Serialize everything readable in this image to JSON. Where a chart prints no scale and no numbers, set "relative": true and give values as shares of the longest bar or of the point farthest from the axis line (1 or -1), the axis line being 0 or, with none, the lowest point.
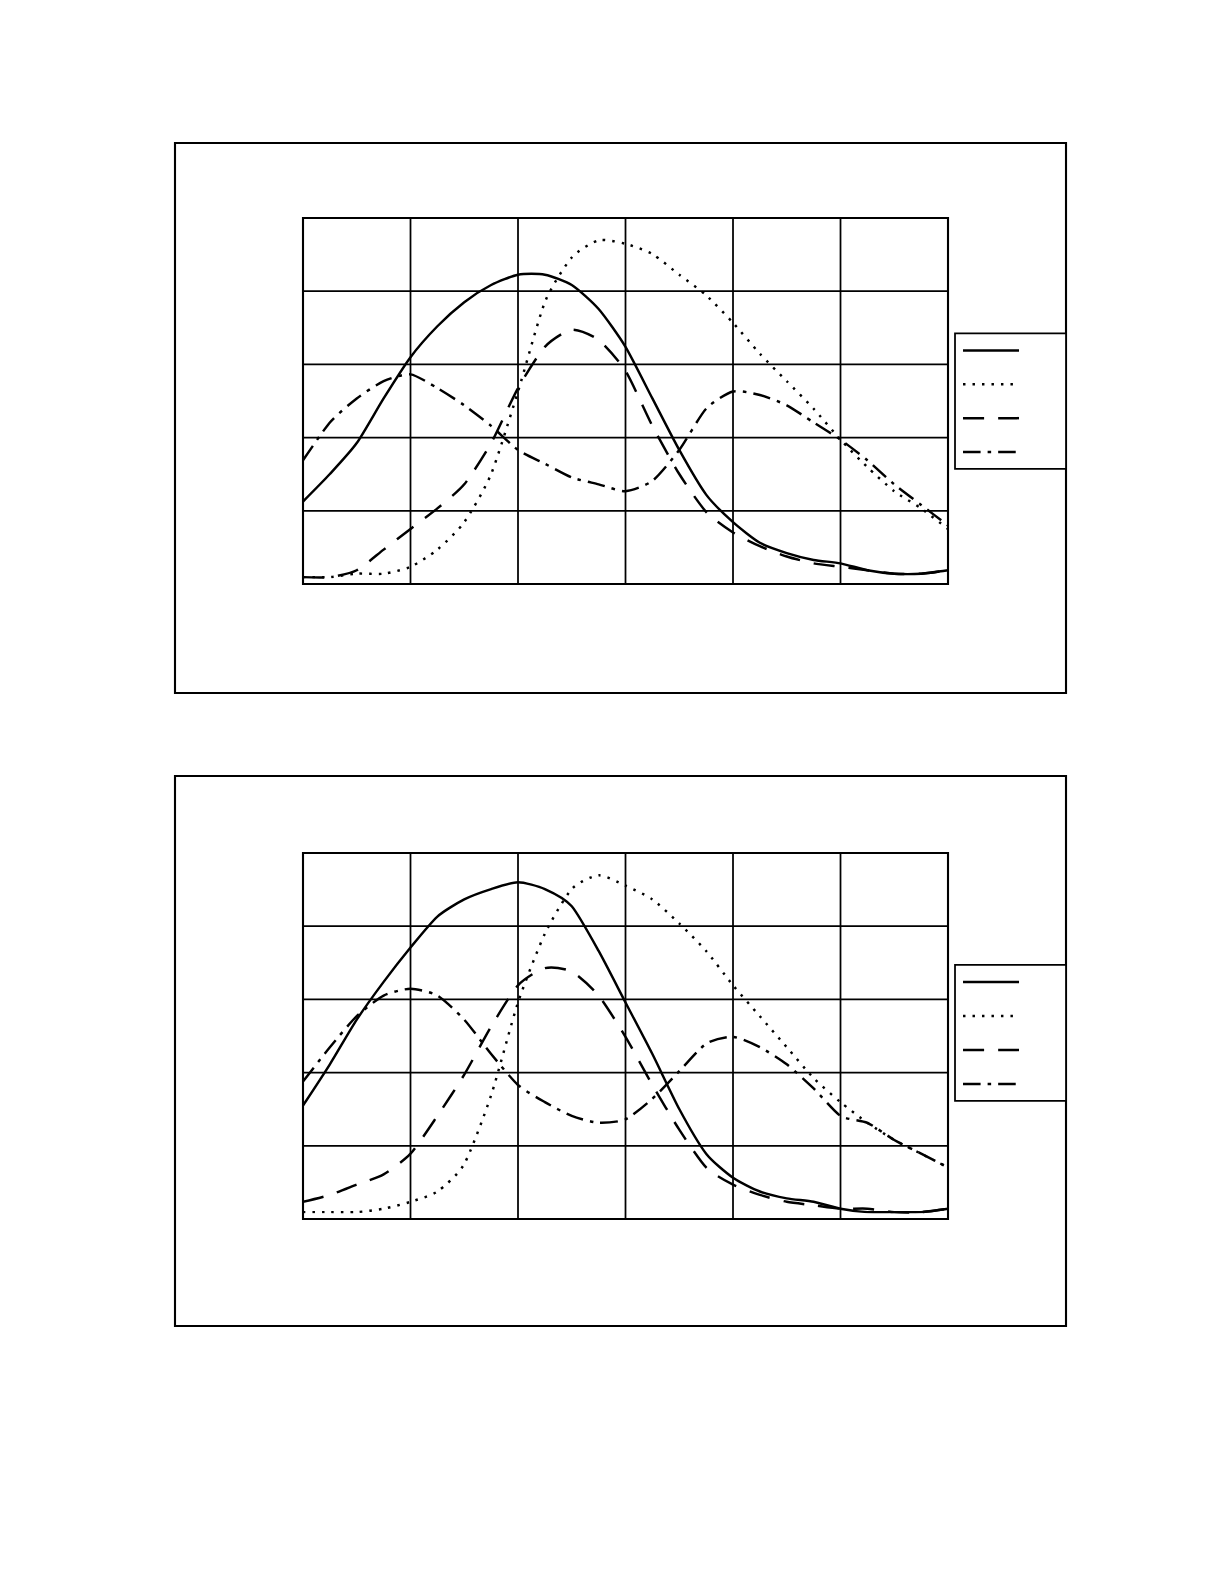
{
  "chart_data": [
    {
      "type": "line",
      "relative": true,
      "grid": true,
      "categories": [
        null,
        null,
        null,
        null,
        null,
        null,
        null,
        null,
        null,
        null,
        null,
        null,
        null,
        null,
        null,
        null,
        null,
        null,
        null,
        null,
        null,
        null,
        null,
        null,
        null
      ],
      "series": [
        {
          "color": "#000000",
          "line_style": "solid",
          "values": [
            0.24,
            0.32,
            0.41,
            0.54,
            0.66,
            0.75,
            0.82,
            0.87,
            0.9,
            0.9,
            0.87,
            0.8,
            0.69,
            0.54,
            0.39,
            0.26,
            0.18,
            0.12,
            0.09,
            0.07,
            0.06,
            0.04,
            0.03,
            0.03,
            0.04
          ]
        },
        {
          "color": "#000000",
          "line_style": "dotted",
          "values": [
            0.02,
            0.02,
            0.03,
            0.03,
            0.05,
            0.1,
            0.18,
            0.32,
            0.56,
            0.82,
            0.95,
            1.0,
            0.99,
            0.96,
            0.9,
            0.84,
            0.76,
            0.67,
            0.59,
            0.51,
            0.42,
            0.34,
            0.27,
            0.22,
            0.16
          ]
        },
        {
          "color": "#000000",
          "line_style": "dashed",
          "values": [
            0.02,
            0.02,
            0.04,
            0.1,
            0.16,
            0.22,
            0.29,
            0.41,
            0.57,
            0.69,
            0.74,
            0.71,
            0.62,
            0.46,
            0.32,
            0.21,
            0.15,
            0.11,
            0.08,
            0.06,
            0.05,
            0.04,
            0.03,
            0.03,
            0.04
          ]
        },
        {
          "color": "#000000",
          "line_style": "dashdot",
          "values": [
            0.36,
            0.47,
            0.54,
            0.59,
            0.61,
            0.57,
            0.52,
            0.46,
            0.39,
            0.35,
            0.31,
            0.29,
            0.27,
            0.3,
            0.39,
            0.51,
            0.56,
            0.55,
            0.52,
            0.47,
            0.42,
            0.36,
            0.29,
            0.23,
            0.17
          ]
        }
      ]
    },
    {
      "type": "line",
      "relative": true,
      "grid": true,
      "categories": [
        null,
        null,
        null,
        null,
        null,
        null,
        null,
        null,
        null,
        null,
        null,
        null,
        null,
        null,
        null,
        null,
        null,
        null,
        null,
        null,
        null,
        null,
        null,
        null,
        null
      ],
      "series": [
        {
          "color": "#000000",
          "line_style": "solid",
          "values": [
            0.33,
            0.45,
            0.58,
            0.69,
            0.79,
            0.88,
            0.93,
            0.96,
            0.98,
            0.96,
            0.91,
            0.78,
            0.63,
            0.48,
            0.32,
            0.19,
            0.12,
            0.08,
            0.06,
            0.05,
            0.03,
            0.02,
            0.02,
            0.02,
            0.03
          ]
        },
        {
          "color": "#000000",
          "line_style": "dotted",
          "values": [
            0.02,
            0.02,
            0.02,
            0.03,
            0.05,
            0.08,
            0.16,
            0.36,
            0.63,
            0.83,
            0.96,
            1.0,
            0.97,
            0.93,
            0.86,
            0.78,
            0.68,
            0.59,
            0.5,
            0.41,
            0.34,
            0.28,
            0.23,
            0.19,
            0.15
          ]
        },
        {
          "color": "#000000",
          "line_style": "dashed",
          "values": [
            0.05,
            0.07,
            0.1,
            0.13,
            0.19,
            0.3,
            0.42,
            0.56,
            0.68,
            0.73,
            0.72,
            0.65,
            0.53,
            0.39,
            0.26,
            0.15,
            0.1,
            0.07,
            0.05,
            0.04,
            0.03,
            0.03,
            0.02,
            0.02,
            0.03
          ]
        },
        {
          "color": "#000000",
          "line_style": "dashdot",
          "values": [
            0.4,
            0.5,
            0.59,
            0.65,
            0.67,
            0.65,
            0.58,
            0.48,
            0.39,
            0.34,
            0.3,
            0.28,
            0.29,
            0.35,
            0.43,
            0.51,
            0.53,
            0.5,
            0.45,
            0.38,
            0.3,
            0.28,
            0.23,
            0.19,
            0.15
          ]
        }
      ]
    }
  ]
}
